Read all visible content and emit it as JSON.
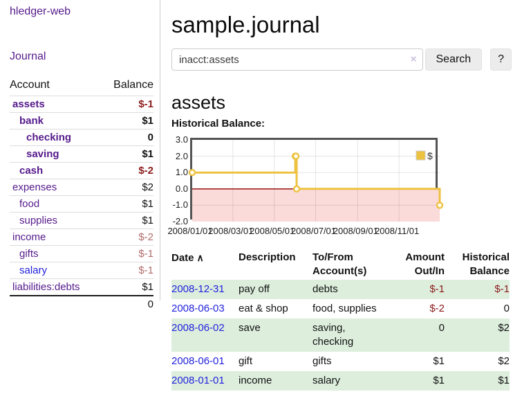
{
  "sidebar": {
    "brand": "hledger-web",
    "nav_journal": "Journal",
    "col_account": "Account",
    "col_balance": "Balance",
    "accounts": [
      {
        "name": "assets",
        "indent": 1,
        "in_query": true,
        "balance": "$-1"
      },
      {
        "name": "bank",
        "indent": 2,
        "in_query": true,
        "balance": "$1"
      },
      {
        "name": "checking",
        "indent": 3,
        "in_query": true,
        "balance": "0"
      },
      {
        "name": "saving",
        "indent": 3,
        "in_query": true,
        "balance": "$1"
      },
      {
        "name": "cash",
        "indent": 2,
        "in_query": true,
        "balance": "$-2"
      },
      {
        "name": "expenses",
        "indent": 1,
        "in_query": false,
        "balance": "$2"
      },
      {
        "name": "food",
        "indent": 2,
        "in_query": false,
        "balance": "$1"
      },
      {
        "name": "supplies",
        "indent": 2,
        "in_query": false,
        "balance": "$1"
      },
      {
        "name": "income",
        "indent": 1,
        "in_query": false,
        "balance": "$-2"
      },
      {
        "name": "gifts",
        "indent": 2,
        "in_query": false,
        "balance": "$-1"
      },
      {
        "name": "salary",
        "indent": 2,
        "in_query": false,
        "balance": "$-1",
        "visited": false
      },
      {
        "name": "liabilities:debts",
        "indent": 1,
        "in_query": false,
        "balance": "$1"
      }
    ],
    "total": "0"
  },
  "header": {
    "title": "sample.journal"
  },
  "search": {
    "value": "inacct:assets",
    "clear_icon": "×",
    "button": "Search",
    "help_button": "?"
  },
  "account_page": {
    "title": "assets",
    "chart_label": "Historical Balance:"
  },
  "chart_data": {
    "type": "line",
    "step": true,
    "series": [
      {
        "name": "$",
        "points": [
          [
            "2008-01-01",
            1
          ],
          [
            "2008-06-01",
            2
          ],
          [
            "2008-06-02",
            2
          ],
          [
            "2008-06-03",
            0
          ],
          [
            "2008-12-31",
            -1
          ]
        ]
      }
    ],
    "x_range": [
      "2008-01-01",
      "2008-12-31"
    ],
    "ylim": [
      -2,
      3
    ],
    "y_ticks": [
      "3.0",
      "2.0",
      "1.0",
      "0.0",
      "-1.0",
      "-2.0"
    ],
    "x_ticks": [
      "2008/01/01",
      "2008/03/01",
      "2008/05/01",
      "2008/07/01",
      "2008/09/01",
      "2008/11/01"
    ],
    "legend": "$",
    "legend_position": "top-right",
    "grid": true,
    "colors": {
      "line": "#edc240",
      "marker_fill": "#fffdf5",
      "negative_region": "#fbdada",
      "zero_line": "#8b0000",
      "border": "#545454"
    }
  },
  "register_table": {
    "headers": {
      "date": "Date",
      "sort_icon": "∧",
      "description": "Description",
      "accounts": "To/From\nAccount(s)",
      "amount": "Amount\nOut/In",
      "balance": "Historical\nBalance"
    },
    "rows": [
      {
        "date": "2008-12-31",
        "description": "pay off",
        "accounts": "debts",
        "amount": "$-1",
        "balance": "$-1"
      },
      {
        "date": "2008-06-03",
        "description": "eat & shop",
        "accounts": "food, supplies",
        "amount": "$-2",
        "balance": "0"
      },
      {
        "date": "2008-06-02",
        "description": "save",
        "accounts": "saving,\nchecking",
        "amount": "0",
        "balance": "$2"
      },
      {
        "date": "2008-06-01",
        "description": "gift",
        "accounts": "gifts",
        "amount": "$1",
        "balance": "$2"
      },
      {
        "date": "2008-01-01",
        "description": "income",
        "accounts": "salary",
        "amount": "$1",
        "balance": "$1"
      }
    ]
  }
}
